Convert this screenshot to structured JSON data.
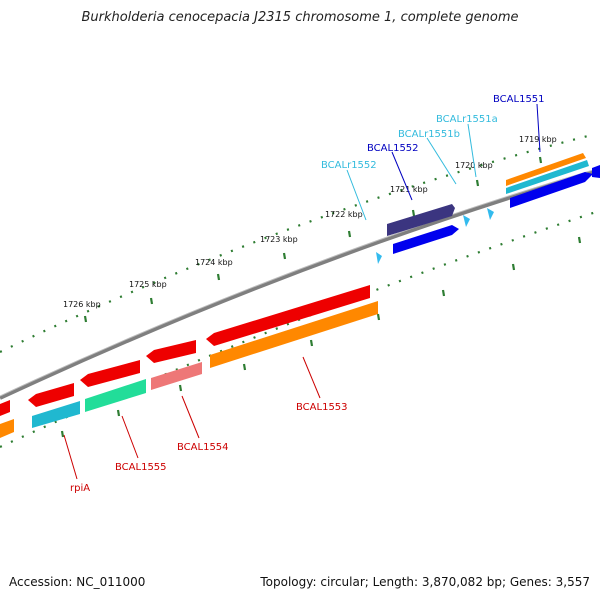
{
  "title": "Burkholderia cenocepacia J2315 chromosome 1, complete genome",
  "accession": "Accession: NC_011000",
  "topology": "Topology: circular; Length: 3,870,082 bp; Genes: 3,557",
  "colors": {
    "backbone": "#7f7f7f",
    "tick": "#2e7d32",
    "label_dark_blue": "#0000c0",
    "label_light_blue": "#33bbdd",
    "label_red": "#cc0000",
    "gene_red": "#ee0000",
    "gene_orange": "#ff8800",
    "gene_blue": "#0000ee",
    "gene_navy": "#3b3580",
    "gene_cyan": "#20b8d0",
    "gene_green": "#22dd99",
    "gene_pink": "#ee7777",
    "rrna_light": "#33bbee"
  },
  "scale": {
    "ticks": [
      "1726 kbp",
      "1725 kbp",
      "1724 kbp",
      "1723 kbp",
      "1722 kbp",
      "1721 kbp",
      "1720 kbp",
      "1719 kbp"
    ]
  },
  "genes": {
    "labels": [
      "BCAL1551",
      "BCALr1551a",
      "BCALr1551b",
      "BCAL1552",
      "BCALr1552",
      "BCAL1553",
      "BCAL1554",
      "BCAL1555",
      "rpiA"
    ]
  }
}
